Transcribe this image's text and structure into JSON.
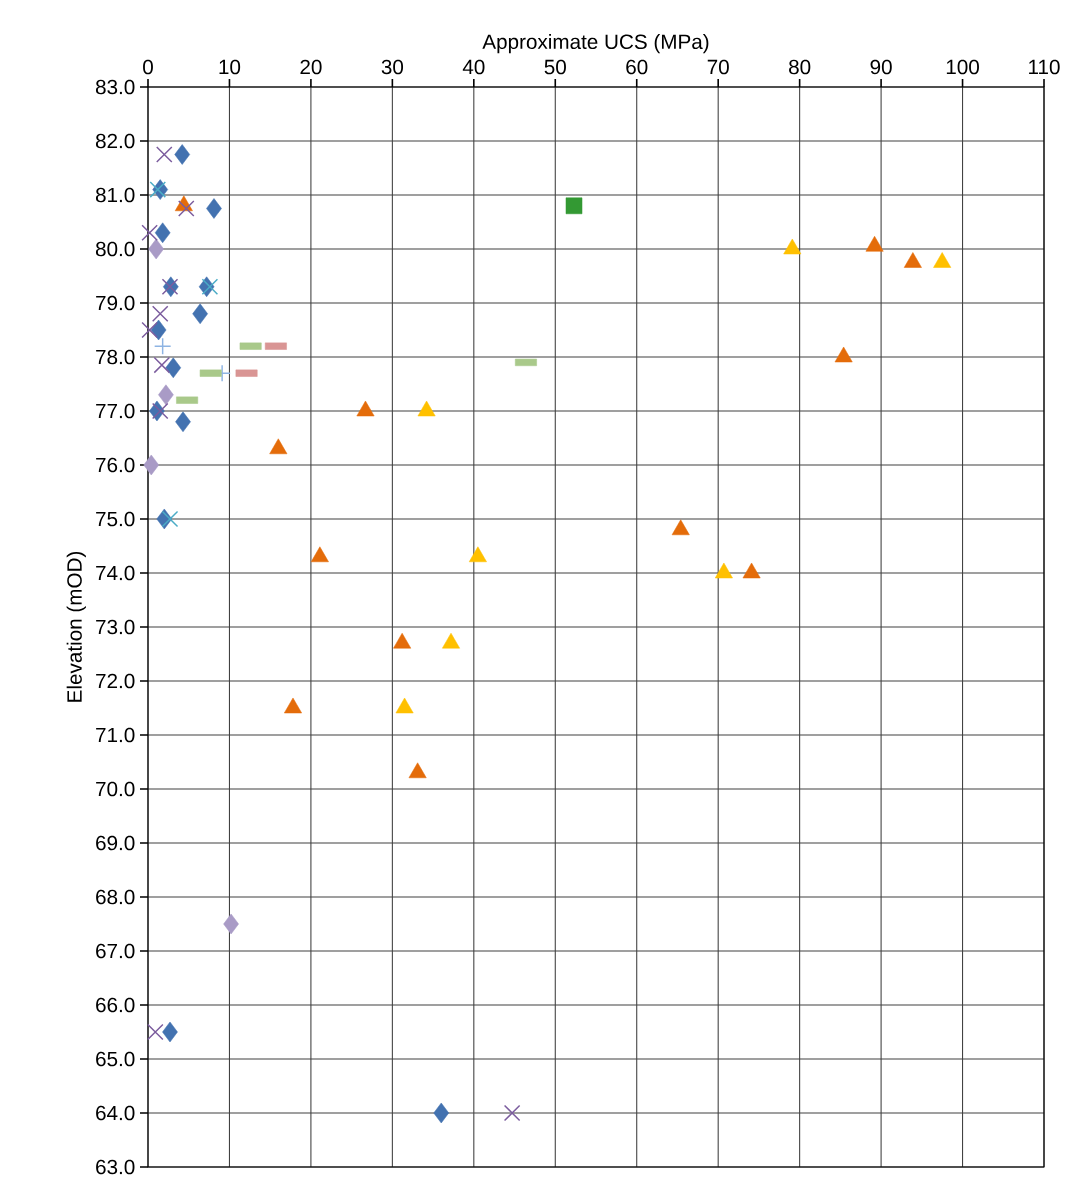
{
  "chart_data": {
    "type": "scatter",
    "xlabel": "Approximate UCS (MPa)",
    "ylabel": "Elevation (mOD)",
    "xlim": [
      0,
      110
    ],
    "xticks": [
      0,
      10,
      20,
      30,
      40,
      50,
      60,
      70,
      80,
      90,
      100,
      110
    ],
    "ylim": [
      63,
      83
    ],
    "yticks": [
      {
        "value": 63,
        "label": "63.0"
      },
      {
        "value": 64,
        "label": "64.0"
      },
      {
        "value": 65,
        "label": "65.0"
      },
      {
        "value": 66,
        "label": "66.0"
      },
      {
        "value": 67,
        "label": "67.0"
      },
      {
        "value": 68,
        "label": "68.0"
      },
      {
        "value": 69,
        "label": "69.0"
      },
      {
        "value": 70,
        "label": "70.0"
      },
      {
        "value": 71,
        "label": "71.0"
      },
      {
        "value": 72,
        "label": "72.0"
      },
      {
        "value": 73,
        "label": "73.0"
      },
      {
        "value": 74,
        "label": "74.0"
      },
      {
        "value": 75,
        "label": "75.0"
      },
      {
        "value": 76,
        "label": "76.0"
      },
      {
        "value": 77,
        "label": "77.0"
      },
      {
        "value": 78,
        "label": "78.0"
      },
      {
        "value": 79,
        "label": "79.0"
      },
      {
        "value": 80,
        "label": "80.0"
      },
      {
        "value": 81,
        "label": "81.0"
      },
      {
        "value": 82,
        "label": "82.0"
      },
      {
        "value": 83,
        "label": "83.0"
      }
    ],
    "grid": true,
    "series": [
      {
        "color": "#4372b0",
        "marker": "diamond",
        "x": [
          4.2,
          1.5,
          8.1,
          1.8,
          2.8,
          7.2,
          6.4,
          1.3,
          3.1,
          1.1,
          4.3,
          2.0,
          2.7,
          36.0
        ],
        "values": [
          81.75,
          81.1,
          80.75,
          80.3,
          79.3,
          79.3,
          78.8,
          78.5,
          77.8,
          77.0,
          76.8,
          75.0,
          65.5,
          64.0
        ]
      },
      {
        "color": "#7b5c9e",
        "marker": "cross",
        "x": [
          2.0,
          4.7,
          0.2,
          2.7,
          1.5,
          0.2,
          1.7,
          1.5,
          0.9,
          44.7
        ],
        "values": [
          81.75,
          80.75,
          80.3,
          79.3,
          78.8,
          78.5,
          77.85,
          77.0,
          65.5,
          64.0
        ]
      },
      {
        "color": "#4bacc6",
        "marker": "cross",
        "x": [
          1.2,
          7.6,
          2.7
        ],
        "values": [
          81.1,
          79.3,
          75.0
        ]
      },
      {
        "color": "#a99bc6",
        "marker": "diamond",
        "x": [
          1.0,
          2.2,
          0.4,
          10.2
        ],
        "values": [
          80.0,
          77.3,
          76.0,
          67.5
        ]
      },
      {
        "color": "#e46c0a",
        "marker": "triangle",
        "x": [
          4.4,
          89.2,
          93.9,
          85.4,
          26.7,
          16.0,
          65.4,
          21.1,
          74.1,
          31.2,
          17.8,
          33.1
        ],
        "values": [
          80.8,
          80.05,
          79.75,
          78.0,
          77.0,
          76.3,
          74.8,
          74.3,
          74.0,
          72.7,
          71.5,
          70.3
        ]
      },
      {
        "color": "#ffc000",
        "marker": "triangle",
        "x": [
          79.1,
          97.5,
          34.2,
          40.5,
          70.7,
          37.2,
          31.5
        ],
        "values": [
          80.0,
          79.75,
          77.0,
          74.3,
          74.0,
          72.7,
          71.5
        ]
      },
      {
        "color": "#339933",
        "marker": "square",
        "x": [
          52.3
        ],
        "values": [
          80.8
        ]
      },
      {
        "color": "#8eb4e3",
        "marker": "plus",
        "x": [
          1.8,
          9.1
        ],
        "values": [
          78.2,
          77.7
        ]
      },
      {
        "color": "#a9c98a",
        "marker": "square",
        "x": [
          12.6,
          7.7,
          4.8,
          46.4
        ],
        "values": [
          78.2,
          77.7,
          77.2,
          77.9
        ]
      },
      {
        "color": "#d99594",
        "marker": "square",
        "x": [
          15.7,
          12.1
        ],
        "values": [
          78.2,
          77.7
        ]
      }
    ]
  }
}
